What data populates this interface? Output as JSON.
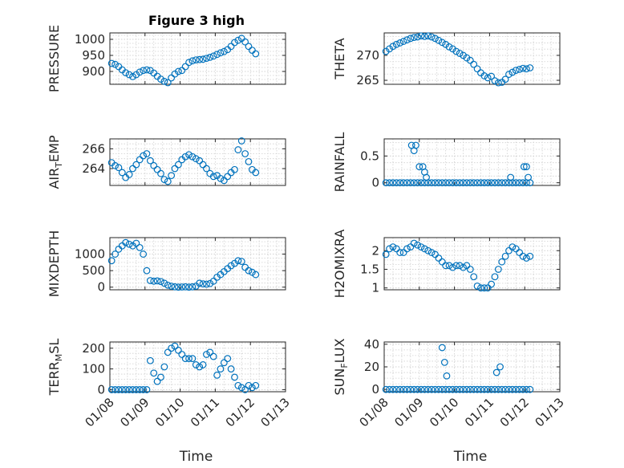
{
  "figure_title": "Figure 3 high",
  "xlabel": "Time",
  "chart_data": [
    {
      "type": "scatter",
      "title": "Figure 3 high",
      "xlabel": "",
      "ylabel": "PRESSURE",
      "ylim": [
        860,
        1020
      ],
      "yticks": [
        900,
        950,
        1000
      ],
      "ytick_labels": [
        "900",
        "950",
        "1000"
      ],
      "xlim": [
        0,
        5
      ],
      "xticks": [
        0,
        1,
        2,
        3,
        4,
        5
      ],
      "xtick_labels": [
        "01/08",
        "01/09",
        "01/10",
        "01/11",
        "01/12",
        "01/13"
      ],
      "grid": true,
      "x": [
        0.05,
        0.15,
        0.25,
        0.35,
        0.45,
        0.55,
        0.65,
        0.75,
        0.85,
        0.95,
        1.05,
        1.15,
        1.25,
        1.35,
        1.45,
        1.55,
        1.65,
        1.75,
        1.85,
        1.95,
        2.05,
        2.15,
        2.25,
        2.35,
        2.45,
        2.55,
        2.65,
        2.75,
        2.85,
        2.95,
        3.05,
        3.15,
        3.25,
        3.35,
        3.45,
        3.55,
        3.65,
        3.75,
        3.85,
        3.95,
        4.05,
        4.15
      ],
      "y": [
        925,
        922,
        915,
        905,
        896,
        890,
        884,
        890,
        898,
        903,
        905,
        903,
        895,
        885,
        876,
        869,
        865,
        880,
        892,
        900,
        903,
        915,
        928,
        933,
        936,
        937,
        938,
        941,
        944,
        948,
        953,
        958,
        962,
        968,
        978,
        990,
        997,
        1003,
        992,
        978,
        966,
        955
      ]
    },
    {
      "type": "scatter",
      "title": "",
      "xlabel": "",
      "ylabel": "THETA",
      "ylim": [
        264.2,
        274.5
      ],
      "yticks": [
        265,
        270
      ],
      "ytick_labels": [
        "265",
        "270"
      ],
      "xlim": [
        0,
        5
      ],
      "xticks": [
        0,
        1,
        2,
        3,
        4,
        5
      ],
      "xtick_labels": [
        "01/08",
        "01/09",
        "01/10",
        "01/11",
        "01/12",
        "01/13"
      ],
      "grid": true,
      "x": [
        0.05,
        0.15,
        0.25,
        0.35,
        0.45,
        0.55,
        0.65,
        0.75,
        0.85,
        0.95,
        1.05,
        1.15,
        1.25,
        1.35,
        1.45,
        1.55,
        1.65,
        1.75,
        1.85,
        1.95,
        2.05,
        2.15,
        2.25,
        2.35,
        2.45,
        2.55,
        2.65,
        2.75,
        2.85,
        2.95,
        3.05,
        3.15,
        3.25,
        3.35,
        3.45,
        3.55,
        3.65,
        3.75,
        3.85,
        3.95,
        4.05,
        4.15
      ],
      "y": [
        270.8,
        271.3,
        271.8,
        272.2,
        272.5,
        272.8,
        273.1,
        273.4,
        273.6,
        273.7,
        273.9,
        273.8,
        273.9,
        273.7,
        273.4,
        273.0,
        272.6,
        272.2,
        271.7,
        271.3,
        270.8,
        270.4,
        270.0,
        269.5,
        269.0,
        268.2,
        267.3,
        266.5,
        265.9,
        265.5,
        265.8,
        264.9,
        264.5,
        264.6,
        265.2,
        266.2,
        266.6,
        267.0,
        267.2,
        267.4,
        267.3,
        267.5
      ]
    },
    {
      "type": "scatter",
      "title": "",
      "xlabel": "",
      "ylabel": "AIR_TEMP",
      "ylabel_main": "AIR",
      "ylabel_sub": "T",
      "ylabel_rest": "EMP",
      "ylim": [
        262.3,
        267.0
      ],
      "yticks": [
        264,
        266
      ],
      "ytick_labels": [
        "264",
        "266"
      ],
      "xlim": [
        0,
        5
      ],
      "xticks": [
        0,
        1,
        2,
        3,
        4,
        5
      ],
      "xtick_labels": [
        "01/08",
        "01/09",
        "01/10",
        "01/11",
        "01/12",
        "01/13"
      ],
      "grid": true,
      "x": [
        0.05,
        0.15,
        0.25,
        0.35,
        0.45,
        0.55,
        0.65,
        0.75,
        0.85,
        0.95,
        1.05,
        1.15,
        1.25,
        1.35,
        1.45,
        1.55,
        1.65,
        1.75,
        1.85,
        1.95,
        2.05,
        2.15,
        2.25,
        2.35,
        2.45,
        2.55,
        2.65,
        2.75,
        2.85,
        2.95,
        3.05,
        3.15,
        3.25,
        3.35,
        3.45,
        3.55,
        3.65,
        3.75,
        3.85,
        3.95,
        4.05,
        4.15
      ],
      "y": [
        264.6,
        264.3,
        264.1,
        263.6,
        263.1,
        263.4,
        264.0,
        264.4,
        264.9,
        265.3,
        265.5,
        264.8,
        264.3,
        263.9,
        263.5,
        262.9,
        262.7,
        263.3,
        264.0,
        264.4,
        264.9,
        265.2,
        265.4,
        265.2,
        265.0,
        264.8,
        264.4,
        264.0,
        263.5,
        263.2,
        263.3,
        263.0,
        262.8,
        263.2,
        263.6,
        263.9,
        265.9,
        266.8,
        265.5,
        264.7,
        263.9,
        263.6
      ]
    },
    {
      "type": "scatter",
      "title": "",
      "xlabel": "",
      "ylabel": "RAINFALL",
      "ylim": [
        -0.05,
        0.82
      ],
      "yticks": [
        0,
        0.5
      ],
      "ytick_labels": [
        "0",
        "0.5"
      ],
      "xlim": [
        0,
        5
      ],
      "xticks": [
        0,
        1,
        2,
        3,
        4,
        5
      ],
      "xtick_labels": [
        "01/08",
        "01/09",
        "01/10",
        "01/11",
        "01/12",
        "01/13"
      ],
      "grid": true,
      "x": [
        0.05,
        0.15,
        0.25,
        0.35,
        0.45,
        0.55,
        0.65,
        0.75,
        0.85,
        0.95,
        1.05,
        1.15,
        1.25,
        1.35,
        1.45,
        1.55,
        1.65,
        1.75,
        1.85,
        1.95,
        2.05,
        2.15,
        2.25,
        2.35,
        2.45,
        2.55,
        2.65,
        2.75,
        2.85,
        2.95,
        3.05,
        3.15,
        3.25,
        3.35,
        3.45,
        3.55,
        3.65,
        3.75,
        3.85,
        3.95,
        4.05,
        4.15,
        0.78,
        0.85,
        0.9,
        1.0,
        1.1,
        1.15,
        1.2,
        3.6,
        3.98,
        4.05,
        4.1
      ],
      "y": [
        0,
        0,
        0,
        0,
        0,
        0,
        0,
        0,
        0,
        0,
        0,
        0,
        0,
        0,
        0,
        0,
        0,
        0,
        0,
        0,
        0,
        0,
        0,
        0,
        0,
        0,
        0,
        0,
        0,
        0,
        0,
        0,
        0,
        0,
        0,
        0,
        0,
        0,
        0,
        0,
        0,
        0,
        0.7,
        0.6,
        0.7,
        0.3,
        0.3,
        0.2,
        0.1,
        0.1,
        0.3,
        0.3,
        0.1
      ]
    },
    {
      "type": "scatter",
      "title": "",
      "xlabel": "",
      "ylabel": "MIXDEPTH",
      "ylim": [
        -80,
        1500
      ],
      "yticks": [
        0,
        500,
        1000
      ],
      "ytick_labels": [
        "0",
        "500",
        "1000"
      ],
      "xlim": [
        0,
        5
      ],
      "xticks": [
        0,
        1,
        2,
        3,
        4,
        5
      ],
      "xtick_labels": [
        "01/08",
        "01/09",
        "01/10",
        "01/11",
        "01/12",
        "01/13"
      ],
      "grid": true,
      "x": [
        0.05,
        0.15,
        0.25,
        0.35,
        0.45,
        0.55,
        0.65,
        0.75,
        0.85,
        0.95,
        1.05,
        1.15,
        1.25,
        1.35,
        1.45,
        1.55,
        1.65,
        1.75,
        1.85,
        1.95,
        2.05,
        2.15,
        2.25,
        2.35,
        2.45,
        2.55,
        2.65,
        2.75,
        2.85,
        2.95,
        3.05,
        3.15,
        3.25,
        3.35,
        3.45,
        3.55,
        3.65,
        3.75,
        3.85,
        3.95,
        4.05,
        4.15
      ],
      "y": [
        800,
        1000,
        1150,
        1250,
        1350,
        1300,
        1250,
        1330,
        1200,
        1000,
        500,
        200,
        180,
        190,
        170,
        120,
        60,
        30,
        10,
        0,
        5,
        10,
        0,
        10,
        30,
        120,
        100,
        90,
        110,
        180,
        300,
        380,
        470,
        560,
        650,
        720,
        800,
        780,
        600,
        500,
        450,
        380
      ]
    },
    {
      "type": "scatter",
      "title": "",
      "xlabel": "",
      "ylabel": "H2OMIXRA",
      "ylim": [
        0.95,
        2.35
      ],
      "yticks": [
        1,
        1.5,
        2
      ],
      "ytick_labels": [
        "1",
        "1.5",
        "2"
      ],
      "xlim": [
        0,
        5
      ],
      "xticks": [
        0,
        1,
        2,
        3,
        4,
        5
      ],
      "xtick_labels": [
        "01/08",
        "01/09",
        "01/10",
        "01/11",
        "01/12",
        "01/13"
      ],
      "grid": true,
      "x": [
        0.05,
        0.15,
        0.25,
        0.35,
        0.45,
        0.55,
        0.65,
        0.75,
        0.85,
        0.95,
        1.05,
        1.15,
        1.25,
        1.35,
        1.45,
        1.55,
        1.65,
        1.75,
        1.85,
        1.95,
        2.05,
        2.15,
        2.25,
        2.35,
        2.45,
        2.55,
        2.65,
        2.75,
        2.85,
        2.95,
        3.05,
        3.15,
        3.25,
        3.35,
        3.45,
        3.55,
        3.65,
        3.75,
        3.85,
        3.95,
        4.05,
        4.15
      ],
      "y": [
        1.9,
        2.05,
        2.1,
        2.05,
        1.95,
        1.95,
        2.05,
        2.1,
        2.2,
        2.15,
        2.1,
        2.05,
        2.0,
        1.95,
        1.9,
        1.8,
        1.7,
        1.6,
        1.6,
        1.55,
        1.6,
        1.6,
        1.55,
        1.6,
        1.5,
        1.3,
        1.05,
        1.0,
        1.0,
        1.0,
        1.1,
        1.3,
        1.5,
        1.7,
        1.85,
        2.0,
        2.1,
        2.05,
        1.95,
        1.85,
        1.8,
        1.85
      ]
    },
    {
      "type": "scatter",
      "title": "",
      "xlabel": "Time",
      "ylabel": "TERR_MSL",
      "ylabel_main": "TERR",
      "ylabel_sub": "M",
      "ylabel_rest": "SL",
      "ylim": [
        -10,
        230
      ],
      "yticks": [
        0,
        100,
        200
      ],
      "ytick_labels": [
        "0",
        "100",
        "200"
      ],
      "xlim": [
        0,
        5
      ],
      "xticks": [
        0,
        1,
        2,
        3,
        4,
        5
      ],
      "xtick_labels": [
        "01/08",
        "01/09",
        "01/10",
        "01/11",
        "01/12",
        "01/13"
      ],
      "grid": true,
      "x": [
        0.05,
        0.15,
        0.25,
        0.35,
        0.45,
        0.55,
        0.65,
        0.75,
        0.85,
        0.95,
        1.05,
        1.15,
        1.25,
        1.35,
        1.45,
        1.55,
        1.65,
        1.75,
        1.85,
        1.95,
        2.05,
        2.15,
        2.25,
        2.35,
        2.45,
        2.55,
        2.65,
        2.75,
        2.85,
        2.95,
        3.05,
        3.15,
        3.25,
        3.35,
        3.45,
        3.55,
        3.65,
        3.75,
        3.85,
        3.95,
        4.05,
        4.15
      ],
      "y": [
        0,
        0,
        0,
        0,
        0,
        0,
        0,
        0,
        0,
        0,
        0,
        140,
        80,
        40,
        60,
        110,
        180,
        200,
        210,
        190,
        170,
        150,
        150,
        150,
        120,
        110,
        120,
        170,
        180,
        160,
        70,
        100,
        130,
        150,
        100,
        60,
        20,
        10,
        0,
        20,
        10,
        20
      ]
    },
    {
      "type": "scatter",
      "title": "",
      "xlabel": "Time",
      "ylabel": "SUN_FLUX",
      "ylabel_main": "SUN",
      "ylabel_sub": "F",
      "ylabel_rest": "LUX",
      "ylim": [
        -2,
        42
      ],
      "yticks": [
        0,
        20,
        40
      ],
      "ytick_labels": [
        "0",
        "20",
        "40"
      ],
      "xlim": [
        0,
        5
      ],
      "xticks": [
        0,
        1,
        2,
        3,
        4,
        5
      ],
      "xtick_labels": [
        "01/08",
        "01/09",
        "01/10",
        "01/11",
        "01/12",
        "01/13"
      ],
      "grid": true,
      "x": [
        0.05,
        0.15,
        0.25,
        0.35,
        0.45,
        0.55,
        0.65,
        0.75,
        0.85,
        0.95,
        1.05,
        1.15,
        1.25,
        1.35,
        1.45,
        1.55,
        1.65,
        1.75,
        1.85,
        1.95,
        2.05,
        2.15,
        2.25,
        2.35,
        2.45,
        2.55,
        2.65,
        2.75,
        2.85,
        2.95,
        3.05,
        3.15,
        3.25,
        3.35,
        3.45,
        3.55,
        3.65,
        3.75,
        3.85,
        3.95,
        4.05,
        4.15,
        1.65,
        1.72,
        1.78,
        3.2,
        3.3
      ],
      "y": [
        0,
        0,
        0,
        0,
        0,
        0,
        0,
        0,
        0,
        0,
        0,
        0,
        0,
        0,
        0,
        0,
        0,
        0,
        0,
        0,
        0,
        0,
        0,
        0,
        0,
        0,
        0,
        0,
        0,
        0,
        0,
        0,
        0,
        0,
        0,
        0,
        0,
        0,
        0,
        0,
        0,
        0,
        37,
        24,
        12,
        15,
        20
      ]
    }
  ]
}
